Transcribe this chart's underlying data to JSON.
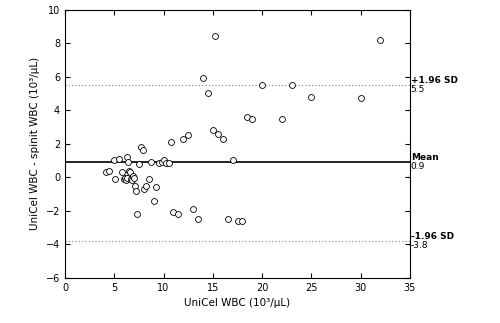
{
  "title": "",
  "xlabel": "UniCel WBC (10³/μL)",
  "ylabel": "UniCel WBC - spinit WBC (10³/μL)",
  "xlim": [
    0,
    35
  ],
  "ylim": [
    -6,
    10
  ],
  "xticks": [
    0,
    5,
    10,
    15,
    20,
    25,
    30,
    35
  ],
  "yticks": [
    -6,
    -4,
    -2,
    0,
    2,
    4,
    6,
    8,
    10
  ],
  "mean_line": 0.9,
  "upper_loa": 5.5,
  "lower_loa": -3.8,
  "mean_label": "Mean",
  "mean_value_label": "0.9",
  "upper_label": "+1.96 SD",
  "upper_value_label": "5.5",
  "lower_label": "-1.96 SD",
  "lower_value_label": "-3.8",
  "scatter_x": [
    4.2,
    4.5,
    5.0,
    5.1,
    5.5,
    5.8,
    6.0,
    6.1,
    6.2,
    6.3,
    6.3,
    6.4,
    6.5,
    6.6,
    6.7,
    6.8,
    6.9,
    7.0,
    7.1,
    7.2,
    7.3,
    7.5,
    7.7,
    7.9,
    8.0,
    8.2,
    8.5,
    8.7,
    9.0,
    9.2,
    9.5,
    9.8,
    10.0,
    10.2,
    10.5,
    10.8,
    11.0,
    11.5,
    12.0,
    12.5,
    13.0,
    13.5,
    14.0,
    14.5,
    15.0,
    15.2,
    15.5,
    16.0,
    16.5,
    17.0,
    17.5,
    18.0,
    18.5,
    19.0,
    20.0,
    22.0,
    23.0,
    25.0,
    30.0,
    32.0
  ],
  "scatter_y": [
    0.3,
    0.4,
    1.0,
    -0.1,
    1.1,
    0.3,
    -0.1,
    -0.05,
    -0.15,
    -0.05,
    1.2,
    0.9,
    0.4,
    0.3,
    -0.1,
    -0.15,
    0.1,
    -0.05,
    -0.5,
    -0.8,
    -2.2,
    0.8,
    1.8,
    1.6,
    -0.7,
    -0.5,
    -0.1,
    0.9,
    -1.4,
    -0.6,
    0.85,
    0.9,
    1.0,
    0.85,
    0.85,
    2.1,
    -2.1,
    -2.2,
    2.3,
    2.5,
    -1.9,
    -2.5,
    5.9,
    5.0,
    2.8,
    8.4,
    2.6,
    2.3,
    -2.5,
    1.0,
    -2.6,
    -2.6,
    3.6,
    3.5,
    5.5,
    3.5,
    5.5,
    4.8,
    4.7,
    8.2
  ],
  "background_color": "#ffffff",
  "line_color": "#000000",
  "loa_color": "#808080",
  "dot_facecolor": "white",
  "dot_edgecolor": "#000000",
  "dot_size": 18,
  "mean_linewidth": 1.2,
  "loa_linewidth": 0.8,
  "label_fontsize": 6.5,
  "axis_label_fontsize": 7.5,
  "tick_fontsize": 7
}
